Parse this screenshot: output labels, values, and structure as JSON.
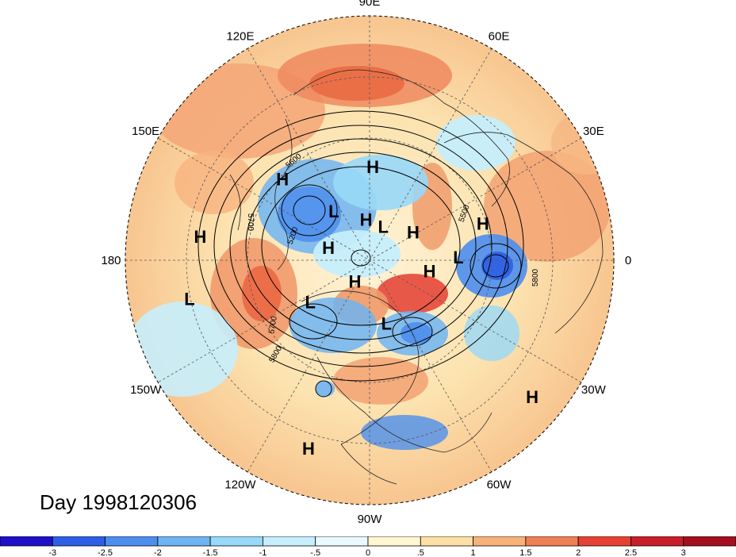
{
  "title": "",
  "day_label": "Day 1998120306",
  "longitude_labels": [
    {
      "text": "90E",
      "lon": 90
    },
    {
      "text": "60E",
      "lon": 60
    },
    {
      "text": "30E",
      "lon": 30
    },
    {
      "text": "0",
      "lon": 0
    },
    {
      "text": "30W",
      "lon": -30
    },
    {
      "text": "60W",
      "lon": -60
    },
    {
      "text": "90W",
      "lon": -90
    },
    {
      "text": "120W",
      "lon": -120
    },
    {
      "text": "150W",
      "lon": -150
    },
    {
      "text": "180",
      "lon": 180
    },
    {
      "text": "150E",
      "lon": 150
    },
    {
      "text": "120E",
      "lon": 120
    }
  ],
  "pressure_centers": [
    {
      "type": "H",
      "lon": 88,
      "lat": 48
    },
    {
      "type": "H",
      "lon": 137,
      "lat": 38
    },
    {
      "type": "H",
      "lon": 18,
      "lat": 38
    },
    {
      "type": "H",
      "lon": 172,
      "lat": 20
    },
    {
      "type": "H",
      "lon": 95,
      "lat": 71
    },
    {
      "type": "H",
      "lon": 33,
      "lat": 66
    },
    {
      "type": "H",
      "lon": 163,
      "lat": 70
    },
    {
      "type": "H",
      "lon": -10,
      "lat": 62
    },
    {
      "type": "H",
      "lon": -125,
      "lat": 78
    },
    {
      "type": "H",
      "lon": -40,
      "lat": 8
    },
    {
      "type": "H",
      "lon": -108,
      "lat": 12
    },
    {
      "type": "L",
      "lon": 126,
      "lat": 62
    },
    {
      "type": "L",
      "lon": 68,
      "lat": 73
    },
    {
      "type": "L",
      "lon": 2,
      "lat": 50
    },
    {
      "type": "L",
      "lon": -145,
      "lat": 57
    },
    {
      "type": "L",
      "lon": -75,
      "lat": 60
    },
    {
      "type": "L",
      "lon": -168,
      "lat": 16
    }
  ],
  "contour_levels": [
    "5200",
    "5500",
    "5600",
    "5700",
    "5800"
  ],
  "colorbar": {
    "ticks": [
      "-3",
      "-2.5",
      "-2",
      "-1.5",
      "-1",
      "-.5",
      "0",
      ".5",
      "1",
      "1.5",
      "2",
      "2.5",
      "3"
    ],
    "colors": [
      "#1f10c8",
      "#2f5ee6",
      "#4c8eee",
      "#6fb4f2",
      "#98d8f8",
      "#c6eefc",
      "#eaf9fd",
      "#fff6d2",
      "#fce0a6",
      "#f7b27a",
      "#ef7f55",
      "#e54235",
      "#c81e2a",
      "#a30f1e"
    ]
  }
}
